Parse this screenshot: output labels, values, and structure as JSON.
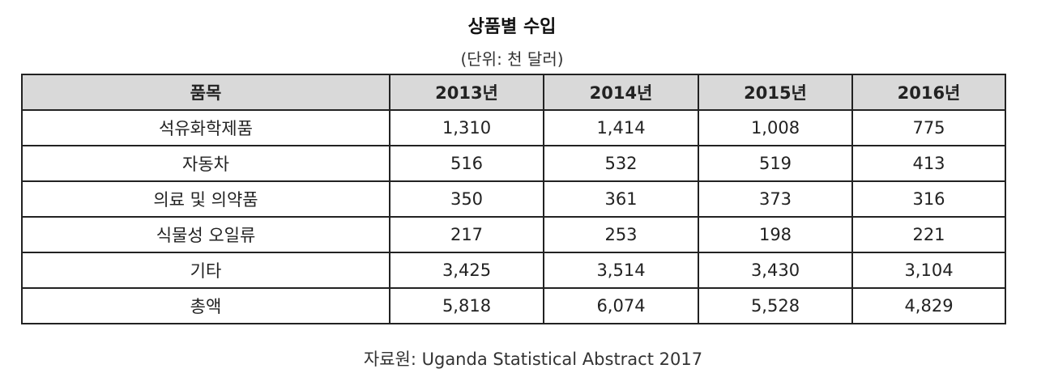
{
  "title": "상품별 수입",
  "unit": "(단위: 천 달러)",
  "table": {
    "headers": [
      "품목",
      "2013년",
      "2014년",
      "2015년",
      "2016년"
    ],
    "rows": [
      [
        "석유화학제품",
        "1,310",
        "1,414",
        "1,008",
        "775"
      ],
      [
        "자동차",
        "516",
        "532",
        "519",
        "413"
      ],
      [
        "의료 및 의약품",
        "350",
        "361",
        "373",
        "316"
      ],
      [
        "식물성 오일류",
        "217",
        "253",
        "198",
        "221"
      ],
      [
        "기타",
        "3,425",
        "3,514",
        "3,430",
        "3,104"
      ],
      [
        "총액",
        "5,818",
        "6,074",
        "5,528",
        "4,829"
      ]
    ]
  },
  "source": "자료원: Uganda Statistical Abstract 2017",
  "colors": {
    "header_background": "#d9d9d9",
    "border": "#222222"
  }
}
